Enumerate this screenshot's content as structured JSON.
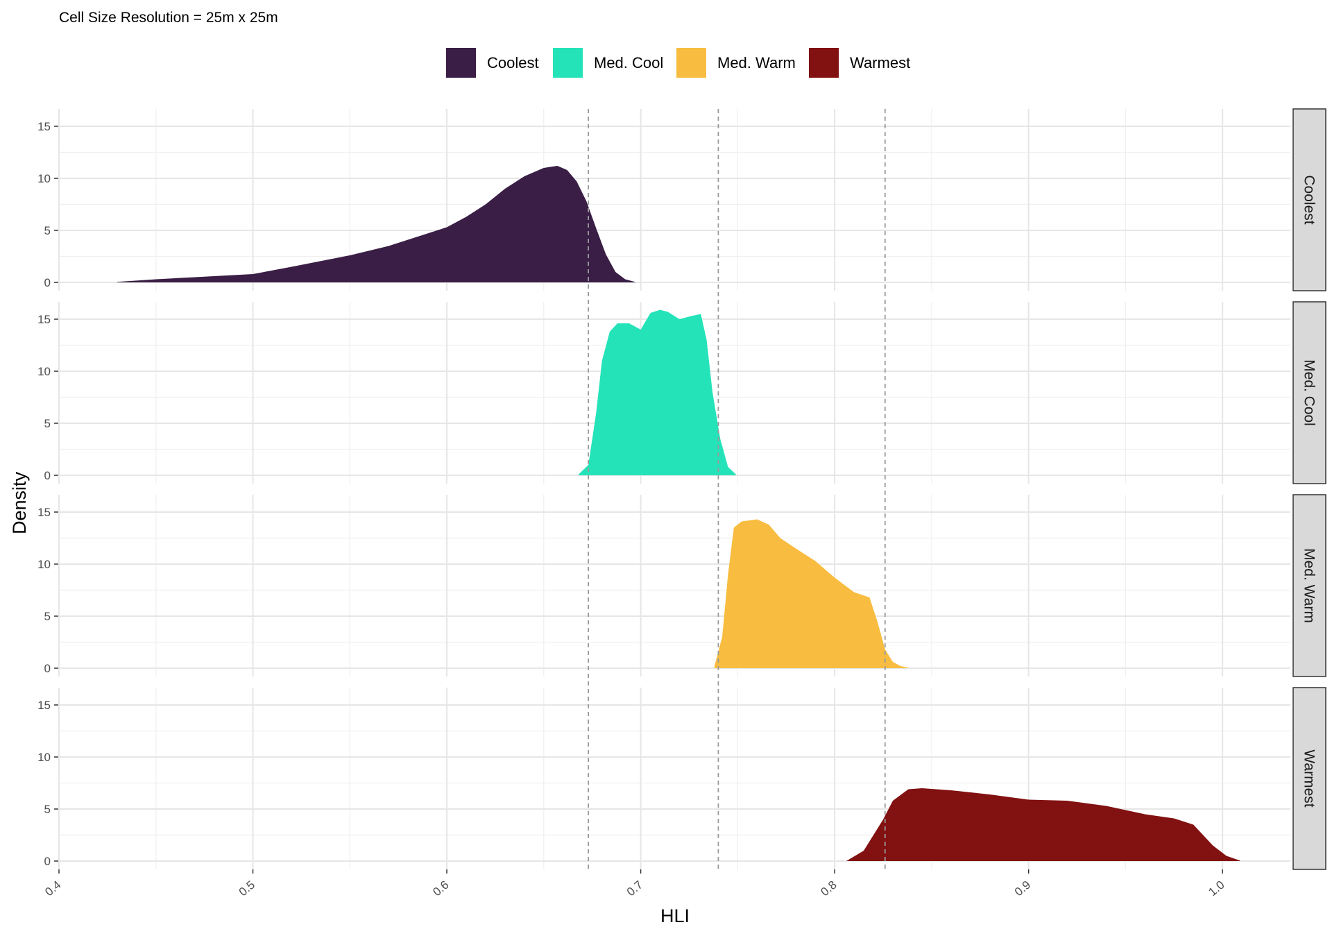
{
  "chart_data": {
    "type": "area",
    "subtitle": "Cell Size Resolution = 25m x 25m",
    "xlabel": "HLI",
    "ylabel": "Density",
    "xlim": [
      0.4,
      1.035
    ],
    "ylim": [
      0,
      17
    ],
    "x_ticks": [
      "0.4",
      "0.5",
      "0.6",
      "0.7",
      "0.8",
      "0.9",
      "1.0"
    ],
    "y_ticks": [
      "0",
      "5",
      "10",
      "15"
    ],
    "grid": true,
    "legend_position": "top",
    "reference_lines": [
      0.673,
      0.74,
      0.826
    ],
    "series": [
      {
        "name": "Coolest",
        "color": "#3a1e45",
        "x": [
          0.43,
          0.45,
          0.47,
          0.48,
          0.5,
          0.52,
          0.55,
          0.57,
          0.6,
          0.61,
          0.62,
          0.63,
          0.64,
          0.65,
          0.657,
          0.662,
          0.667,
          0.672,
          0.677,
          0.682,
          0.687,
          0.692,
          0.697
        ],
        "y": [
          0.05,
          0.3,
          0.5,
          0.6,
          0.8,
          1.5,
          2.6,
          3.5,
          5.3,
          6.3,
          7.5,
          9.0,
          10.2,
          11.0,
          11.2,
          10.8,
          9.7,
          7.8,
          5.2,
          2.7,
          1.0,
          0.3,
          0.05
        ]
      },
      {
        "name": "Med. Cool",
        "color": "#25e3b9",
        "x": [
          0.668,
          0.673,
          0.677,
          0.68,
          0.684,
          0.688,
          0.694,
          0.7,
          0.705,
          0.71,
          0.714,
          0.72,
          0.726,
          0.731,
          0.734,
          0.737,
          0.741,
          0.745,
          0.749
        ],
        "y": [
          0.1,
          1.0,
          6.0,
          11.0,
          13.8,
          14.6,
          14.6,
          14.0,
          15.6,
          15.9,
          15.7,
          15.0,
          15.3,
          15.5,
          13.0,
          8.0,
          3.5,
          0.8,
          0.1
        ]
      },
      {
        "name": "Med. Warm",
        "color": "#f8bd40",
        "x": [
          0.738,
          0.742,
          0.745,
          0.748,
          0.752,
          0.76,
          0.766,
          0.772,
          0.78,
          0.79,
          0.8,
          0.81,
          0.818,
          0.822,
          0.826,
          0.83,
          0.834,
          0.838
        ],
        "y": [
          0.2,
          3.0,
          9.0,
          13.5,
          14.1,
          14.3,
          13.8,
          12.5,
          11.5,
          10.3,
          8.7,
          7.3,
          6.8,
          4.5,
          1.8,
          0.6,
          0.2,
          0.05
        ]
      },
      {
        "name": "Warmest",
        "color": "#821111",
        "x": [
          0.806,
          0.815,
          0.825,
          0.83,
          0.838,
          0.845,
          0.86,
          0.88,
          0.9,
          0.92,
          0.94,
          0.96,
          0.975,
          0.985,
          0.995,
          1.002,
          1.009
        ],
        "y": [
          0.0,
          1.0,
          4.0,
          5.8,
          6.9,
          7.0,
          6.8,
          6.4,
          5.9,
          5.8,
          5.3,
          4.5,
          4.1,
          3.5,
          1.5,
          0.5,
          0.05
        ]
      }
    ]
  }
}
